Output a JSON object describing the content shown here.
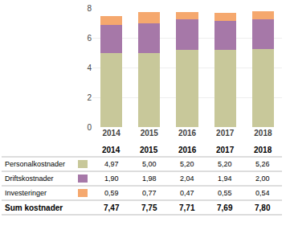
{
  "chart_data": [
    {
      "type": "bar",
      "stacked": true,
      "categories": [
        "2014",
        "2015",
        "2016",
        "2017",
        "2018"
      ],
      "series": [
        {
          "color": "#c8c89a",
          "values": [
            4.97,
            5.0,
            5.2,
            5.2,
            5.26
          ]
        },
        {
          "color": "#a678a8",
          "values": [
            1.9,
            1.98,
            2.04,
            1.94,
            2.0
          ]
        },
        {
          "color": "#f5a86e",
          "values": [
            0.59,
            0.77,
            0.47,
            0.55,
            0.54
          ]
        }
      ],
      "ylim": [
        0,
        8
      ],
      "yticks": [
        0,
        2,
        4,
        6,
        8
      ],
      "grid": true
    },
    {
      "type": "table",
      "categories": [
        "2014",
        "2015",
        "2016",
        "2017",
        "2018"
      ],
      "series": [
        {
          "name": "Personalkostnader",
          "color": "#c8c89a",
          "values": [
            4.97,
            5.0,
            5.2,
            5.2,
            5.26
          ],
          "value_labels": [
            "4,97",
            "5,00",
            "5,20",
            "5,20",
            "5,26"
          ]
        },
        {
          "name": "Driftskostnader",
          "color": "#a678a8",
          "values": [
            1.9,
            1.98,
            2.04,
            1.94,
            2.0
          ],
          "value_labels": [
            "1,90",
            "1,98",
            "2,04",
            "1,94",
            "2,00"
          ]
        },
        {
          "name": "Investeringer",
          "color": "#f5a86e",
          "values": [
            0.59,
            0.77,
            0.47,
            0.55,
            0.54
          ],
          "value_labels": [
            "0,59",
            "0,77",
            "0,47",
            "0,55",
            "0,54"
          ]
        },
        {
          "name": "Sum kostnader",
          "values": [
            7.47,
            7.75,
            7.71,
            7.69,
            7.8
          ],
          "value_labels": [
            "7,47",
            "7,75",
            "7,71",
            "7,69",
            "7,80"
          ]
        }
      ]
    }
  ]
}
